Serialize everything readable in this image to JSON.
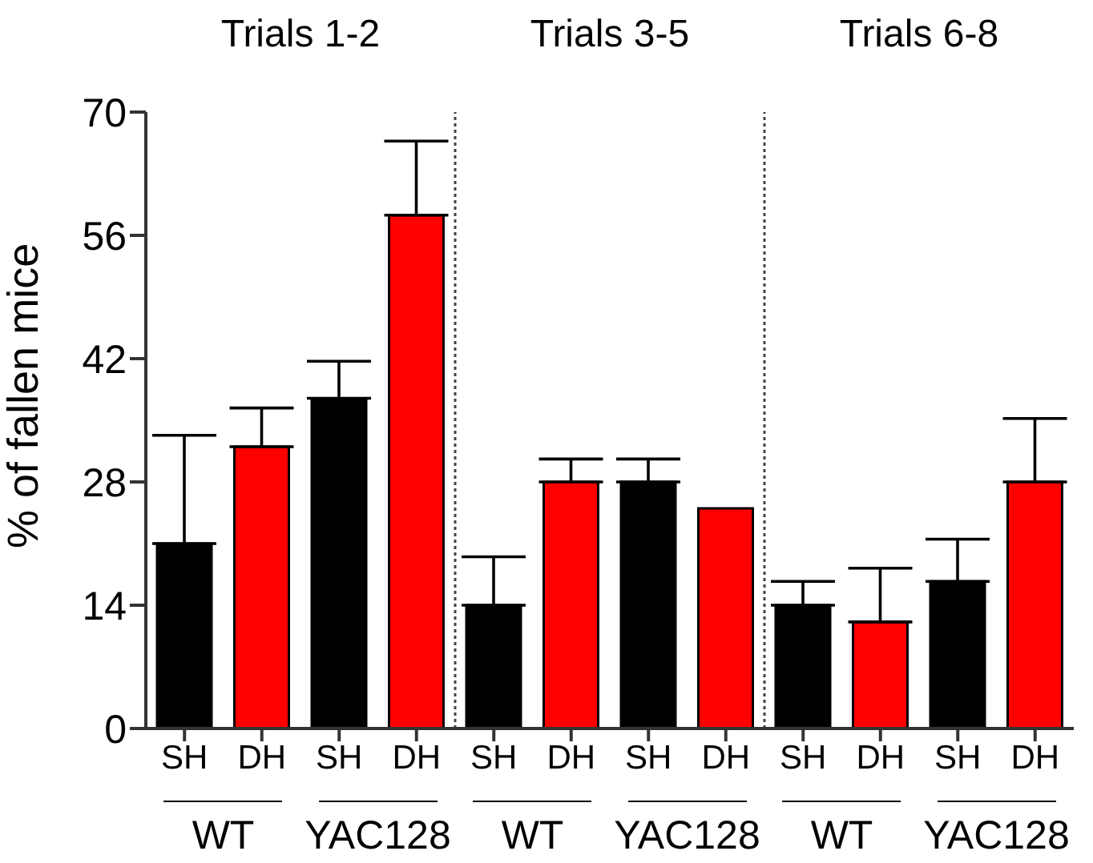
{
  "chart_data": {
    "type": "bar",
    "ylabel": "% of fallen mice",
    "categories": [
      "SH",
      "DH",
      "SH",
      "DH",
      "SH",
      "DH",
      "SH",
      "DH",
      "SH",
      "DH",
      "SH",
      "DH"
    ],
    "values": [
      21,
      32,
      37.5,
      58.3,
      14,
      28,
      28,
      25,
      14,
      12.1,
      16.7,
      28
    ],
    "colors": [
      "#000000",
      "#ff0000",
      "#000000",
      "#ff0000",
      "#000000",
      "#ff0000",
      "#000000",
      "#ff0000",
      "#000000",
      "#ff0000",
      "#000000",
      "#ff0000"
    ],
    "errors": [
      [
        21,
        33.3
      ],
      [
        32,
        36.4
      ],
      [
        37.5,
        41.7
      ],
      [
        58.3,
        66.7
      ],
      [
        14,
        19.5
      ],
      [
        28,
        30.6
      ],
      [
        28,
        30.6
      ],
      null,
      [
        14,
        16.7
      ],
      [
        12.1,
        18.2
      ],
      [
        16.7,
        21.5
      ],
      [
        28,
        35.2
      ]
    ],
    "ylim": [
      0,
      70
    ],
    "yticks": [
      0,
      14,
      28,
      42,
      56,
      70
    ],
    "grid": false,
    "legend": false,
    "annotations": [
      "Trials 1-2",
      "Trials 3-5",
      "Trials 6-8",
      "WT",
      "YAC128",
      "WT",
      "YAC128",
      "WT",
      "YAC128"
    ]
  }
}
